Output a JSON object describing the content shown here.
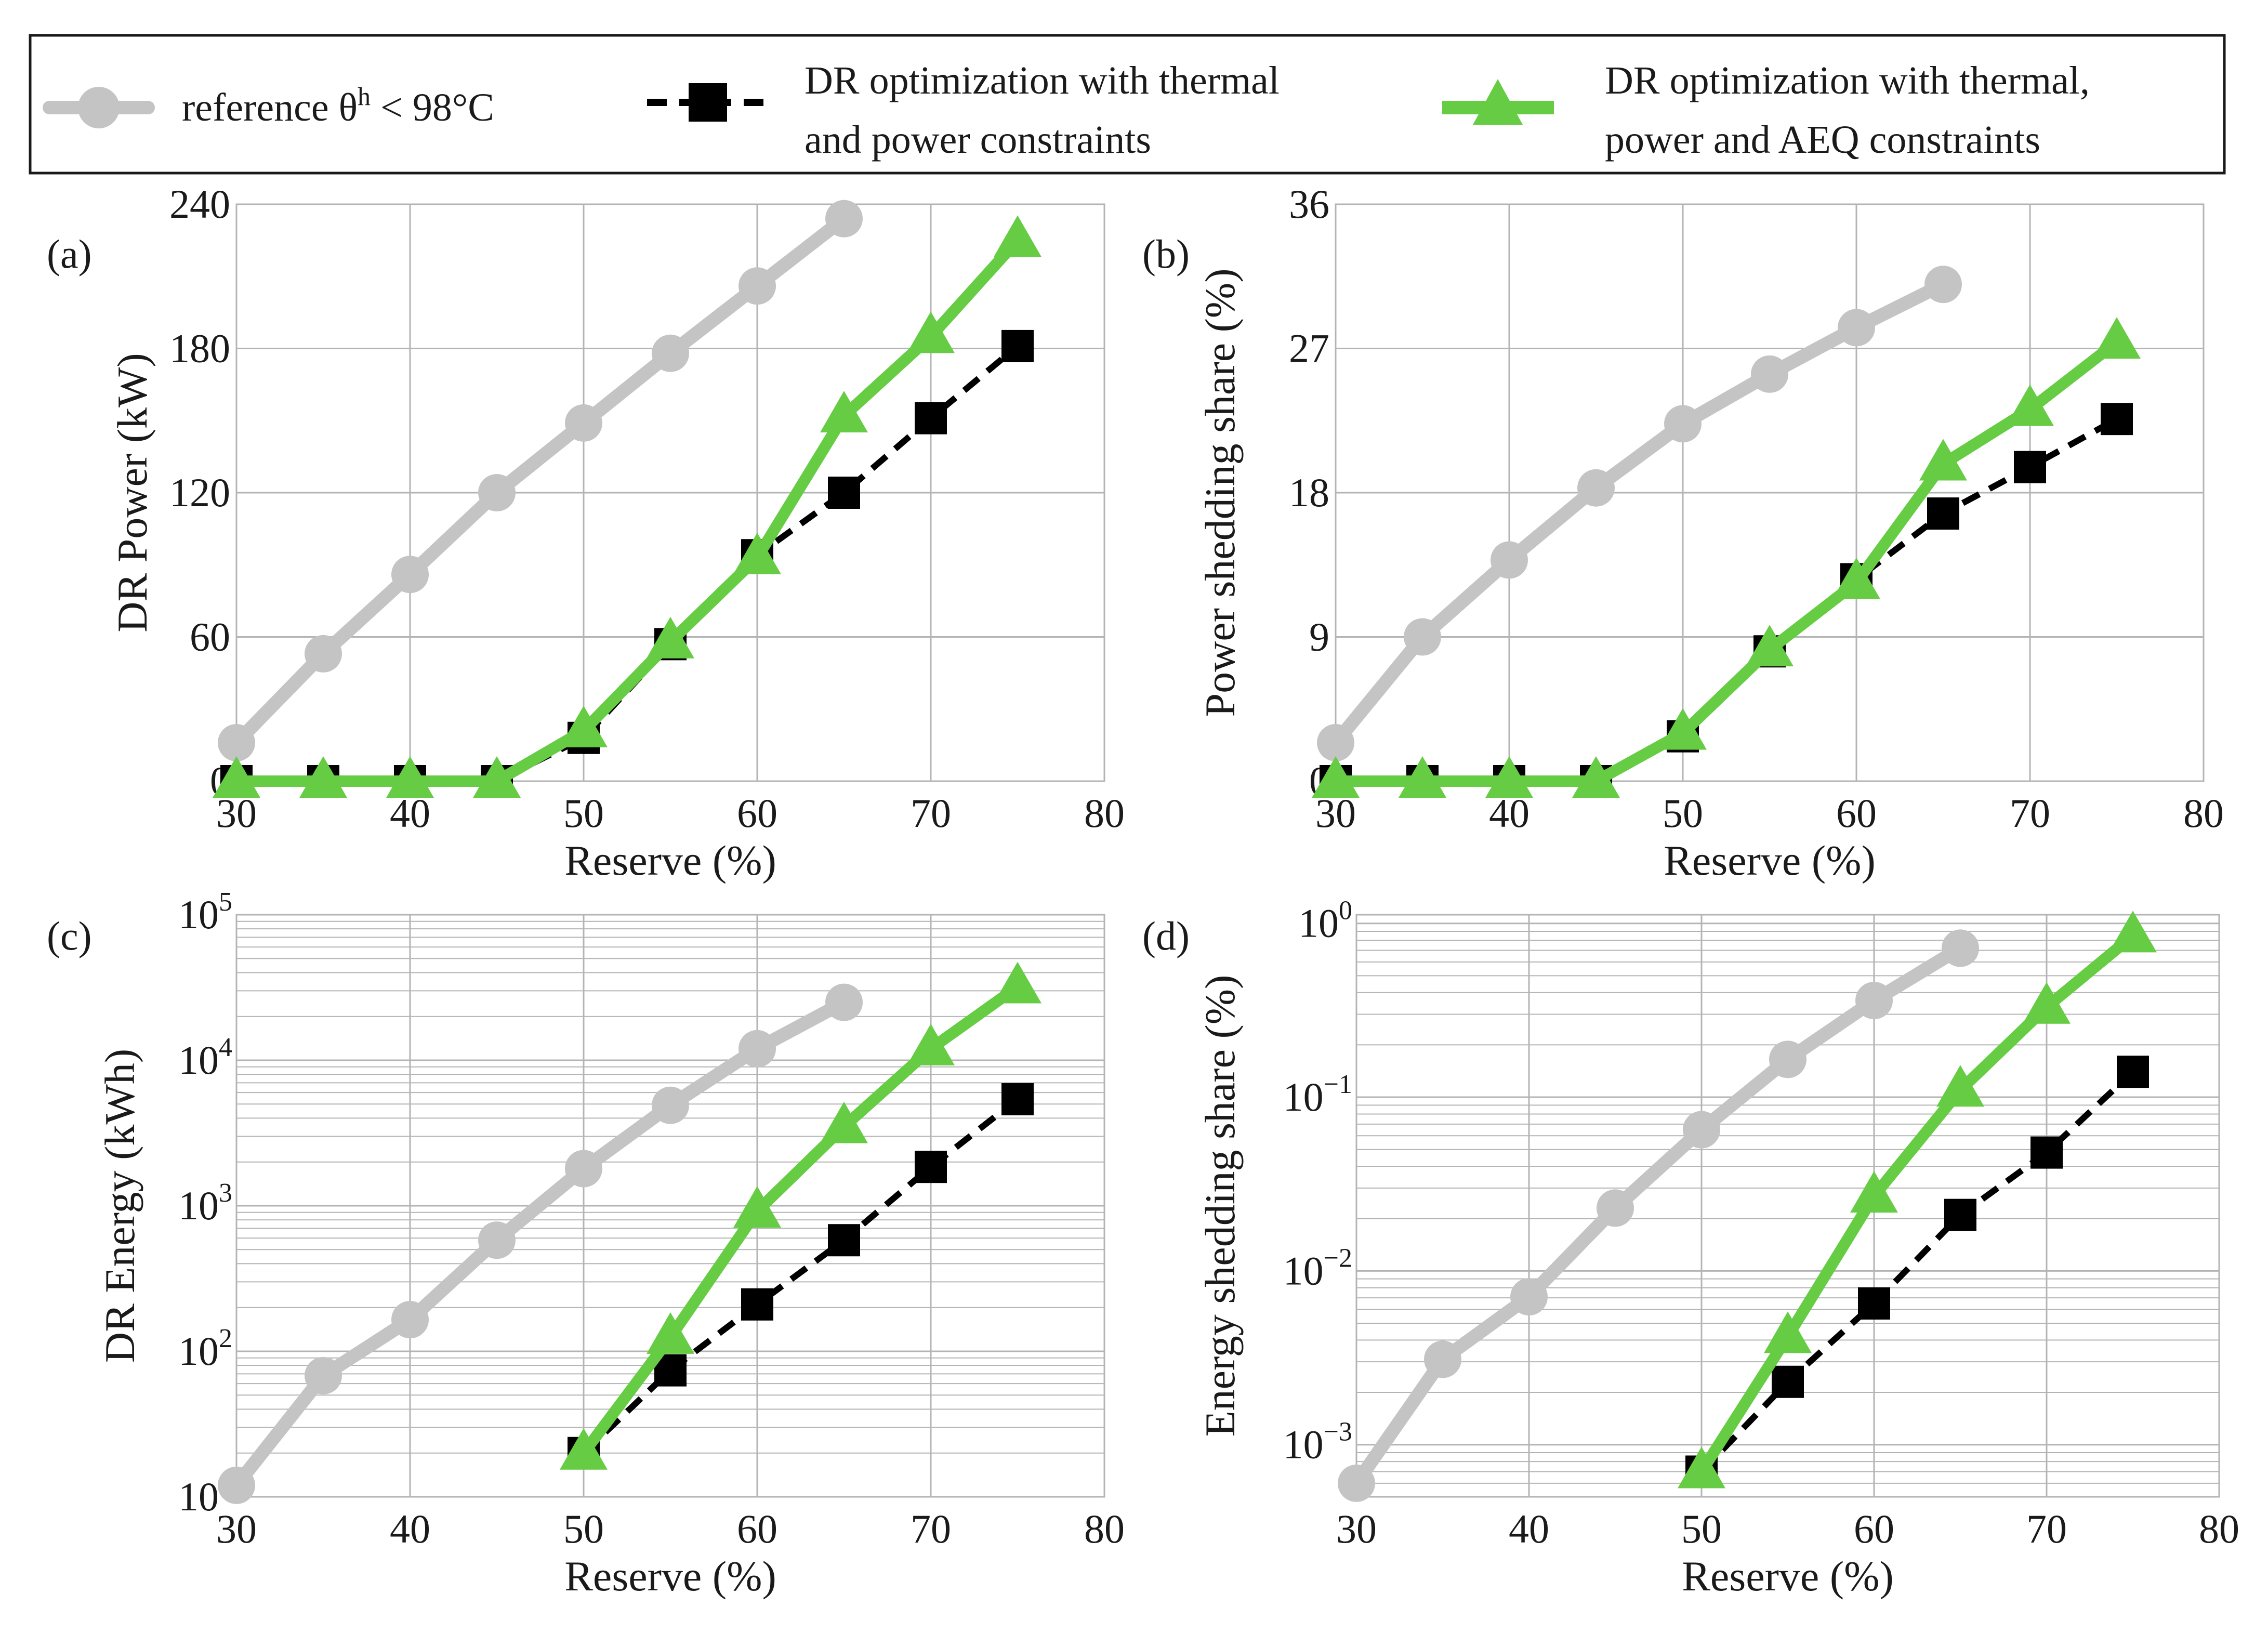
{
  "legend": {
    "items": [
      {
        "label": "reference θʰ < 98°C",
        "label_parts": [
          "reference θ",
          "h",
          " < 98°C"
        ],
        "color": "#c4c4c4",
        "marker": "circle",
        "line": "solid"
      },
      {
        "label": "DR optimization with thermal and power constraints",
        "lines": [
          "DR optimization with thermal",
          "and power constraints"
        ],
        "color": "#000000",
        "marker": "square",
        "line": "dashed"
      },
      {
        "label": "DR optimization with thermal, power and AEQ constraints",
        "lines": [
          "DR optimization with thermal,",
          "power and AEQ constraints"
        ],
        "color": "#66cc44",
        "marker": "triangle",
        "line": "solid"
      }
    ]
  },
  "colors": {
    "reference": "#c4c4c4",
    "thermal_power": "#000000",
    "aeq": "#66cc44",
    "grid": "#b4b4b4"
  },
  "chart_data": [
    {
      "id": "a",
      "panel_label": "(a)",
      "type": "line",
      "scale": "linear",
      "xlabel": "Reserve (%)",
      "ylabel": "DR Power (kW)",
      "xlim": [
        30,
        80
      ],
      "ylim": [
        0,
        240
      ],
      "xticks": [
        30,
        40,
        50,
        60,
        70,
        80
      ],
      "yticks": [
        0,
        60,
        120,
        180,
        240
      ],
      "series": [
        {
          "name": "reference",
          "x": [
            30,
            35,
            40,
            45,
            50,
            55,
            60,
            65
          ],
          "y": [
            16,
            53,
            86,
            120,
            149,
            178,
            206,
            234
          ]
        },
        {
          "name": "thermal_power",
          "x": [
            30,
            35,
            40,
            45,
            50,
            55,
            60,
            65,
            70,
            75
          ],
          "y": [
            0,
            0,
            0,
            0,
            18,
            57,
            94,
            120,
            151,
            181
          ]
        },
        {
          "name": "aeq",
          "x": [
            30,
            35,
            40,
            45,
            50,
            55,
            60,
            65,
            70,
            75
          ],
          "y": [
            0,
            0,
            0,
            0,
            21,
            58,
            93,
            152,
            185,
            225
          ]
        }
      ]
    },
    {
      "id": "b",
      "panel_label": "(b)",
      "type": "line",
      "scale": "linear",
      "xlabel": "Reserve (%)",
      "ylabel": "Power shedding share (%)",
      "xlim": [
        30,
        80
      ],
      "ylim": [
        0,
        36
      ],
      "xticks": [
        30,
        40,
        50,
        60,
        70,
        80
      ],
      "yticks": [
        0,
        9,
        18,
        27,
        36
      ],
      "series": [
        {
          "name": "reference",
          "x": [
            30,
            35,
            40,
            45,
            50,
            55,
            60,
            65
          ],
          "y": [
            2.4,
            9,
            13.8,
            18.3,
            22.3,
            25.4,
            28.3,
            31
          ]
        },
        {
          "name": "thermal_power",
          "x": [
            30,
            35,
            40,
            45,
            50,
            55,
            60,
            65,
            70,
            75
          ],
          "y": [
            0,
            0,
            0,
            0,
            2.8,
            8.1,
            12.6,
            16.7,
            19.6,
            22.6
          ]
        },
        {
          "name": "aeq",
          "x": [
            30,
            35,
            40,
            45,
            50,
            55,
            60,
            65,
            70,
            75
          ],
          "y": [
            0,
            0,
            0,
            0,
            3,
            8.2,
            12.4,
            19.8,
            23.2,
            27.4
          ]
        }
      ]
    },
    {
      "id": "c",
      "panel_label": "(c)",
      "type": "line",
      "scale": "log",
      "xlabel": "Reserve (%)",
      "ylabel": "DR Energy (kWh)",
      "xlim": [
        30,
        80
      ],
      "ylim_exp": [
        1,
        5
      ],
      "xticks": [
        30,
        40,
        50,
        60,
        70,
        80
      ],
      "ytick_exponents": [
        1,
        2,
        3,
        4,
        5
      ],
      "ytick_labels": [
        {
          "base": "10",
          "exp": "1"
        },
        {
          "base": "10",
          "exp": "2"
        },
        {
          "base": "10",
          "exp": "3"
        },
        {
          "base": "10",
          "exp": "4"
        },
        {
          "base": "10",
          "exp": "5"
        }
      ],
      "series": [
        {
          "name": "reference",
          "x": [
            30,
            35,
            40,
            45,
            50,
            55,
            60,
            65
          ],
          "y": [
            12,
            68,
            165,
            580,
            1800,
            4900,
            12000,
            25000
          ]
        },
        {
          "name": "thermal_power",
          "x": [
            50,
            55,
            60,
            65,
            70,
            75
          ],
          "y": [
            20,
            74,
            210,
            580,
            1850,
            5400
          ]
        },
        {
          "name": "aeq",
          "x": [
            50,
            55,
            60,
            65,
            70,
            75
          ],
          "y": [
            20,
            125,
            920,
            3500,
            12000,
            32000
          ]
        }
      ]
    },
    {
      "id": "d",
      "panel_label": "(d)",
      "type": "line",
      "scale": "log",
      "xlabel": "Reserve (%)",
      "ylabel": "Energy shedding share (%)",
      "xlim": [
        30,
        80
      ],
      "ylim_exp": [
        -3.3,
        0.05
      ],
      "xticks": [
        30,
        40,
        50,
        60,
        70,
        80
      ],
      "ytick_exponents": [
        -3,
        -2,
        -1,
        0
      ],
      "ytick_labels": [
        {
          "base": "10",
          "exp": "−3"
        },
        {
          "base": "10",
          "exp": "−2"
        },
        {
          "base": "10",
          "exp": "−1"
        },
        {
          "base": "10",
          "exp": "0"
        }
      ],
      "series": [
        {
          "name": "reference",
          "x": [
            30,
            35,
            40,
            45,
            50,
            55,
            60,
            65
          ],
          "y": [
            0.0006,
            0.0031,
            0.0071,
            0.023,
            0.065,
            0.165,
            0.36,
            0.72
          ]
        },
        {
          "name": "thermal_power",
          "x": [
            50,
            55,
            60,
            65,
            70,
            75
          ],
          "y": [
            0.0007,
            0.0023,
            0.0065,
            0.021,
            0.048,
            0.14
          ]
        },
        {
          "name": "aeq",
          "x": [
            50,
            55,
            60,
            65,
            70,
            75
          ],
          "y": [
            0.0007,
            0.0042,
            0.027,
            0.11,
            0.33,
            0.85
          ]
        }
      ]
    }
  ]
}
